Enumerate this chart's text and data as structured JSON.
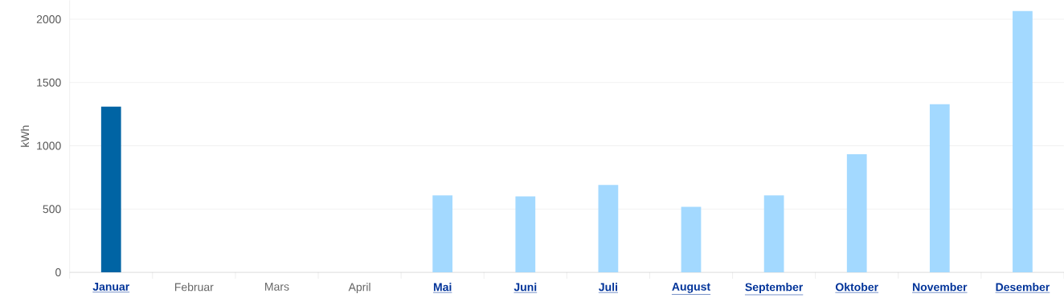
{
  "chart_data": {
    "type": "bar",
    "ylabel": "kWh",
    "categories": [
      "Januar",
      "Februar",
      "Mars",
      "April",
      "Mai",
      "Juni",
      "Juli",
      "August",
      "September",
      "Oktober",
      "November",
      "Desember"
    ],
    "values": [
      1310,
      null,
      null,
      null,
      607,
      600,
      690,
      518,
      607,
      933,
      1329,
      2064
    ],
    "colors": [
      "#0064a4",
      "#a3d9ff",
      "#a3d9ff",
      "#a3d9ff",
      "#a3d9ff",
      "#a3d9ff",
      "#a3d9ff",
      "#a3d9ff",
      "#a3d9ff",
      "#a3d9ff",
      "#a3d9ff",
      "#a3d9ff"
    ],
    "ylim": [
      0,
      2150
    ],
    "yticks": [
      0,
      500,
      1000,
      1500,
      2000
    ],
    "grid": "y"
  }
}
